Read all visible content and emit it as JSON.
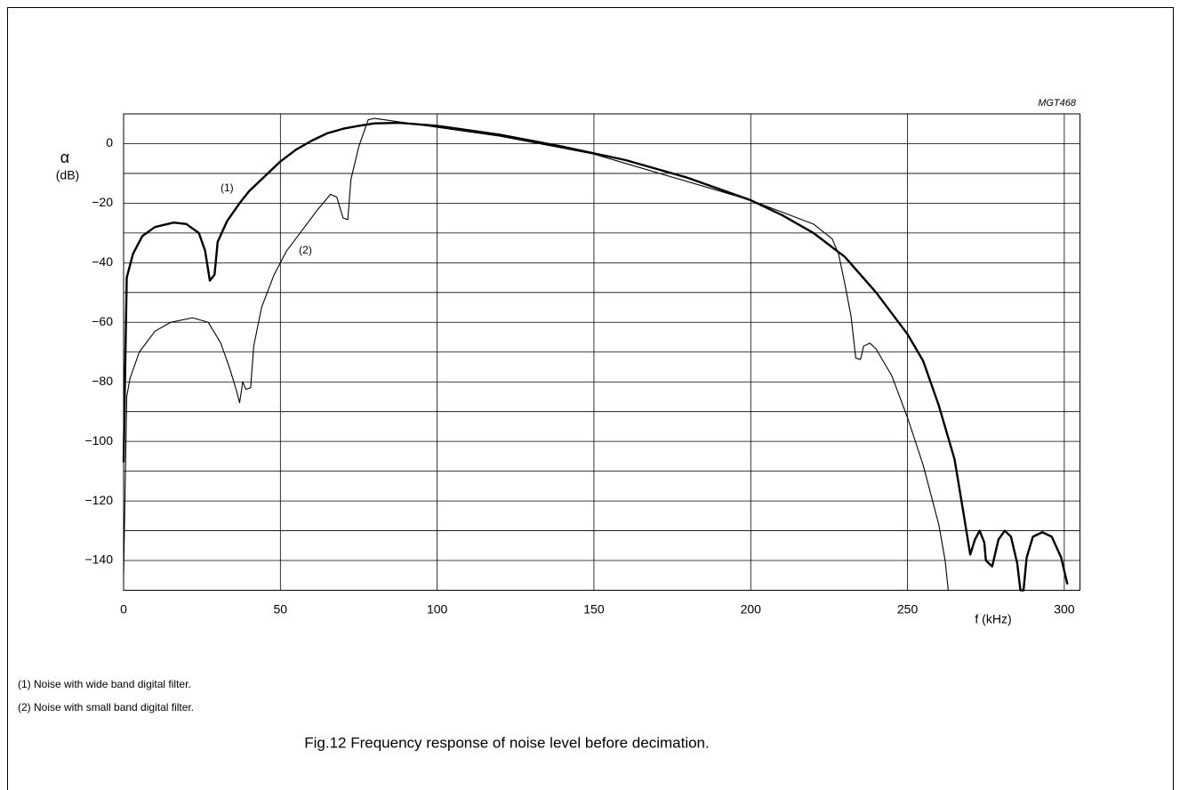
{
  "chart_data": {
    "type": "line",
    "title": "Fig.12  Frequency response of noise level before decimation.",
    "code": "MGT468",
    "y_label_symbol": "α",
    "y_label_unit": "(dB)",
    "x_label": "f (kHz)",
    "xlim": [
      0,
      305
    ],
    "xticks": [
      0,
      50,
      100,
      150,
      200,
      250,
      300
    ],
    "ylim": [
      -150,
      10
    ],
    "yticks": [
      {
        "value": 0,
        "label": "0"
      },
      {
        "value": -20,
        "label": "−20"
      },
      {
        "value": -40,
        "label": "−40"
      },
      {
        "value": -60,
        "label": "−60"
      },
      {
        "value": -80,
        "label": "−80"
      },
      {
        "value": -100,
        "label": "−100"
      },
      {
        "value": -120,
        "label": "−120"
      },
      {
        "value": -140,
        "label": "−140"
      }
    ],
    "y_minor_ticks": [
      -130,
      -110,
      -90,
      -70,
      -50,
      -30,
      -10
    ],
    "grid": true,
    "series": [
      {
        "name": "(1)",
        "color": "#000000",
        "linewidth": 2.4,
        "x": [
          0,
          1,
          3,
          6,
          10,
          16,
          20,
          24,
          26,
          27.5,
          29,
          30,
          33,
          37,
          40,
          45,
          50,
          55,
          60,
          65,
          70,
          75,
          80,
          88,
          100,
          120,
          140,
          160,
          180,
          200,
          210,
          220,
          230,
          240,
          250,
          255,
          260,
          265,
          268,
          270,
          271.5,
          273,
          274.5,
          275,
          277,
          279,
          281,
          283,
          285,
          286,
          287,
          288,
          290,
          293,
          296,
          299,
          301
        ],
        "values": [
          -107,
          -45,
          -37,
          -31,
          -28,
          -26.5,
          -27,
          -30,
          -36,
          -46,
          -44,
          -33,
          -26,
          -20,
          -16,
          -11,
          -6,
          -2,
          1,
          3.5,
          5,
          6,
          6.8,
          7,
          6,
          3,
          -1,
          -5.5,
          -11.5,
          -19,
          -24,
          -30,
          -38,
          -50,
          -64,
          -73,
          -88,
          -106,
          -125,
          -138,
          -133,
          -130,
          -134,
          -140,
          -142,
          -133,
          -130,
          -132,
          -141,
          -150,
          -150,
          -139,
          -132,
          -130.5,
          -132,
          -139,
          -148
        ]
      },
      {
        "name": "(2)",
        "color": "#000000",
        "linewidth": 1.1,
        "x": [
          0,
          1,
          2,
          5,
          10,
          15,
          22,
          27,
          31,
          34,
          36,
          37,
          38,
          39,
          40.5,
          41.5,
          44,
          48,
          52,
          57,
          62,
          66,
          68,
          70,
          71.5,
          72.5,
          75,
          78,
          80,
          90,
          100,
          120,
          150,
          200,
          220,
          226,
          228,
          230,
          232,
          233.5,
          235,
          236,
          238,
          240,
          245,
          250,
          255,
          260,
          262,
          263
        ],
        "values": [
          -145,
          -85,
          -79,
          -70,
          -63,
          -60,
          -58.5,
          -60,
          -67,
          -76,
          -83,
          -87,
          -80,
          -82.5,
          -82,
          -68,
          -55,
          -44,
          -36,
          -29,
          -22,
          -17,
          -18,
          -25,
          -25.5,
          -12,
          -1,
          8,
          8.5,
          7,
          5.5,
          2.5,
          -3.5,
          -19,
          -27,
          -32,
          -37,
          -47,
          -58,
          -72,
          -72.5,
          -68,
          -67,
          -69,
          -78,
          -92,
          -108,
          -128,
          -140,
          -150
        ]
      }
    ],
    "annotations": [
      {
        "text": "(1)",
        "x": 33,
        "y": -15
      },
      {
        "text": "(2)",
        "x": 58,
        "y": -36
      }
    ],
    "notes": [
      "(1)  Noise with wide band digital filter.",
      "(2)  Noise with small band digital filter."
    ]
  }
}
